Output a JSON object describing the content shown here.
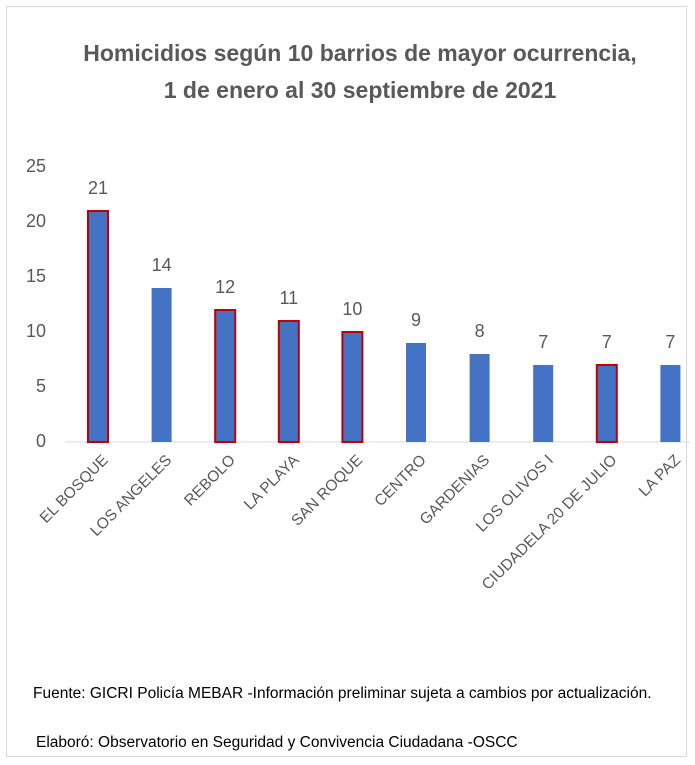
{
  "chart_data": {
    "type": "bar",
    "title": "Homicidios según 10 barrios de mayor ocurrencia,  1 de enero al 30 septiembre de 2021",
    "categories": [
      "EL BOSQUE",
      "LOS ANGELES",
      "REBOLO",
      "LA PLAYA",
      "SAN ROQUE",
      "CENTRO",
      "GARDENIAS",
      "LOS OLIVOS I",
      "CIUDADELA 20 DE JULIO",
      "LA PAZ"
    ],
    "values": [
      21,
      14,
      12,
      11,
      10,
      9,
      8,
      7,
      7,
      7
    ],
    "color": "#4472c4",
    "edge_colors": [
      "#c00000",
      null,
      "#c00000",
      "#c00000",
      "#c00000",
      null,
      null,
      null,
      "#c00000",
      null
    ],
    "ylim": [
      0,
      25
    ],
    "yticks": [
      0,
      5,
      10,
      15,
      20,
      25
    ],
    "grid": false,
    "notes": [
      "Fuente: GICRI Policía MEBAR -Información preliminar sujeta a cambios por actualización.",
      "Elaboró: Observatorio en Seguridad y Convivencia Ciudadana -OSCC"
    ]
  }
}
